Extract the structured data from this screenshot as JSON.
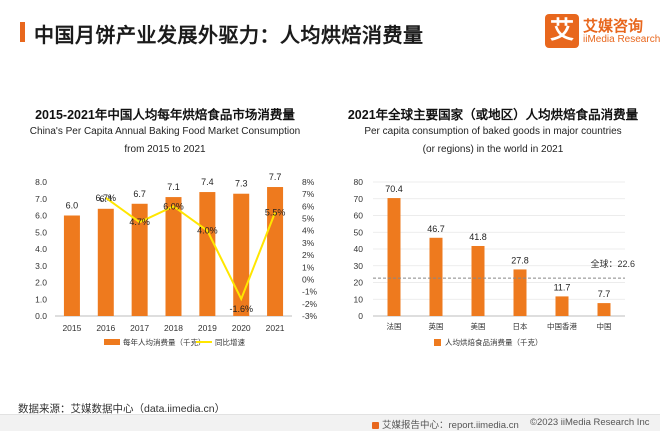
{
  "page": {
    "title": "中国月饼产业发展外驱力：人均烘焙消费量",
    "logo_mark": "艾",
    "logo_cn": "艾媒咨询",
    "logo_en": "iiMedia Research",
    "source": "数据来源：艾媒数据中心（data.iimedia.cn）",
    "footer_link": "艾媒报告中心：report.iimedia.cn",
    "footer_copy": "©2023  iiMedia Research  Inc",
    "accent_color": "#e8671d",
    "bar_color": "#ee7a1e",
    "line_color": "#ffe600"
  },
  "chart_data": [
    {
      "type": "bar",
      "title": "2015-2021年中国人均每年烘焙食品市场消费量",
      "subtitle_line1": "China's Per Capita Annual Baking Food Market Consumption",
      "subtitle_line2": "from 2015 to 2021",
      "categories": [
        "2015",
        "2016",
        "2017",
        "2018",
        "2019",
        "2020",
        "2021"
      ],
      "ylim": [
        0,
        8
      ],
      "y_ticks": [
        "0.0",
        "1.0",
        "2.0",
        "3.0",
        "4.0",
        "5.0",
        "6.0",
        "7.0",
        "8.0"
      ],
      "y2lim": [
        -3,
        8
      ],
      "y2_ticks": [
        "-3%",
        "-2%",
        "-1%",
        "0%",
        "1%",
        "2%",
        "3%",
        "4%",
        "5%",
        "6%",
        "7%",
        "8%"
      ],
      "series": [
        {
          "name": "每年人均消费量（千克）",
          "kind": "bar",
          "values": [
            6.0,
            6.4,
            6.7,
            7.1,
            7.4,
            7.3,
            7.7
          ],
          "labels": [
            "6.0",
            "6.4",
            "6.7",
            "7.1",
            "7.4",
            "7.3",
            "7.7"
          ]
        },
        {
          "name": "同比增速",
          "kind": "line",
          "axis": "right",
          "values": [
            null,
            6.7,
            4.7,
            6.0,
            4.0,
            -1.6,
            5.5
          ],
          "labels": [
            "",
            "6.7%",
            "4.7%",
            "6.0%",
            "4.0%",
            "-1.6%",
            "5.5%"
          ]
        }
      ],
      "legend_position": "bottom",
      "grid": false
    },
    {
      "type": "bar",
      "title": "2021年全球主要国家（或地区）人均烘焙食品消费量",
      "subtitle_line1": "Per capita consumption of baked goods in major countries",
      "subtitle_line2": "(or regions) in the world in 2021",
      "categories": [
        "法国",
        "英国",
        "美国",
        "日本",
        "中国香港",
        "中国"
      ],
      "values": [
        70.4,
        46.7,
        41.8,
        27.8,
        11.7,
        7.7
      ],
      "labels": [
        "70.4",
        "46.7",
        "41.8",
        "27.8",
        "11.7",
        "7.7"
      ],
      "ylim": [
        0,
        80
      ],
      "y_ticks": [
        "0",
        "10",
        "20",
        "30",
        "40",
        "50",
        "60",
        "70",
        "80"
      ],
      "reference_line": {
        "value": 22.6,
        "label": "全球：22.6"
      },
      "series_name": "人均烘焙食品消费量（千克）",
      "legend_position": "bottom",
      "grid": true
    }
  ]
}
